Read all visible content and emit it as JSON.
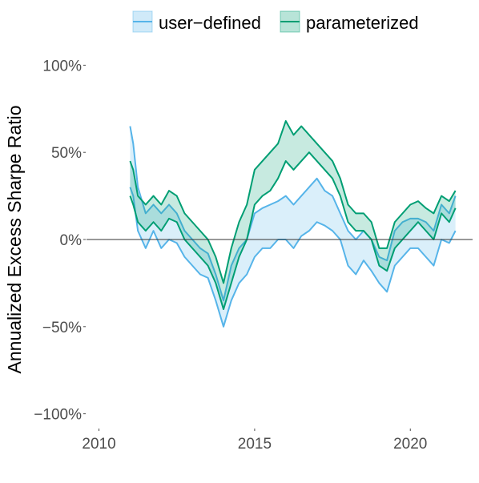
{
  "chart_data": {
    "type": "area",
    "title": "",
    "xlabel": "",
    "ylabel": "Annualized Excess Sharpe Ratio",
    "x_ticks": [
      2010,
      2015,
      2020
    ],
    "y_ticks": [
      -100,
      -50,
      0,
      50,
      100
    ],
    "y_tick_labels": [
      "−100%",
      "−50%",
      "0%",
      "50%",
      "100%"
    ],
    "xlim": [
      2009.6,
      2022.0
    ],
    "ylim": [
      -108,
      108
    ],
    "y_unit": "percent",
    "grid": false,
    "zero_line": true,
    "legend": {
      "position": "top",
      "entries": [
        "user−defined",
        "parameterized"
      ]
    },
    "series": [
      {
        "name": "user−defined",
        "color": "#56B4E9",
        "x": [
          2011.0,
          2011.1,
          2011.25,
          2011.5,
          2011.75,
          2012.0,
          2012.25,
          2012.5,
          2012.75,
          2013.0,
          2013.25,
          2013.5,
          2013.75,
          2014.0,
          2014.25,
          2014.5,
          2014.75,
          2015.0,
          2015.25,
          2015.5,
          2015.75,
          2016.0,
          2016.25,
          2016.5,
          2016.75,
          2017.0,
          2017.25,
          2017.5,
          2017.75,
          2018.0,
          2018.25,
          2018.5,
          2018.75,
          2019.0,
          2019.25,
          2019.5,
          2019.75,
          2020.0,
          2020.25,
          2020.5,
          2020.75,
          2021.0,
          2021.25,
          2021.45
        ],
        "lower": [
          30,
          25,
          5,
          -5,
          5,
          -5,
          0,
          -2,
          -10,
          -15,
          -20,
          -22,
          -35,
          -50,
          -35,
          -25,
          -20,
          -10,
          -5,
          -5,
          0,
          0,
          -5,
          2,
          5,
          10,
          8,
          5,
          0,
          -15,
          -20,
          -12,
          -18,
          -25,
          -30,
          -15,
          -10,
          -5,
          -5,
          -10,
          -15,
          0,
          -2,
          5
        ],
        "upper": [
          65,
          55,
          30,
          15,
          20,
          15,
          20,
          15,
          5,
          0,
          -5,
          -8,
          -20,
          -35,
          -15,
          -5,
          0,
          15,
          18,
          20,
          22,
          25,
          20,
          25,
          30,
          35,
          28,
          25,
          15,
          5,
          0,
          5,
          0,
          -10,
          -12,
          5,
          10,
          12,
          12,
          10,
          5,
          20,
          15,
          25
        ]
      },
      {
        "name": "parameterized",
        "color": "#009E73",
        "x": [
          2011.0,
          2011.1,
          2011.25,
          2011.5,
          2011.75,
          2012.0,
          2012.25,
          2012.5,
          2012.75,
          2013.0,
          2013.25,
          2013.5,
          2013.75,
          2014.0,
          2014.25,
          2014.5,
          2014.75,
          2015.0,
          2015.25,
          2015.5,
          2015.75,
          2016.0,
          2016.25,
          2016.5,
          2016.75,
          2017.0,
          2017.25,
          2017.5,
          2017.75,
          2018.0,
          2018.25,
          2018.5,
          2018.75,
          2019.0,
          2019.25,
          2019.5,
          2019.75,
          2020.0,
          2020.25,
          2020.5,
          2020.75,
          2021.0,
          2021.25,
          2021.45
        ],
        "lower": [
          25,
          20,
          10,
          5,
          10,
          5,
          12,
          10,
          0,
          -5,
          -10,
          -15,
          -25,
          -40,
          -25,
          -10,
          0,
          20,
          25,
          28,
          35,
          45,
          40,
          45,
          50,
          45,
          40,
          35,
          25,
          10,
          5,
          5,
          0,
          -15,
          -18,
          -5,
          0,
          5,
          10,
          5,
          0,
          15,
          10,
          18
        ],
        "upper": [
          45,
          40,
          25,
          20,
          25,
          20,
          28,
          25,
          15,
          10,
          5,
          0,
          -10,
          -25,
          -5,
          10,
          20,
          40,
          45,
          50,
          55,
          68,
          60,
          65,
          60,
          55,
          50,
          45,
          35,
          20,
          15,
          15,
          10,
          -5,
          -5,
          10,
          15,
          20,
          22,
          18,
          15,
          25,
          22,
          28
        ]
      }
    ]
  }
}
